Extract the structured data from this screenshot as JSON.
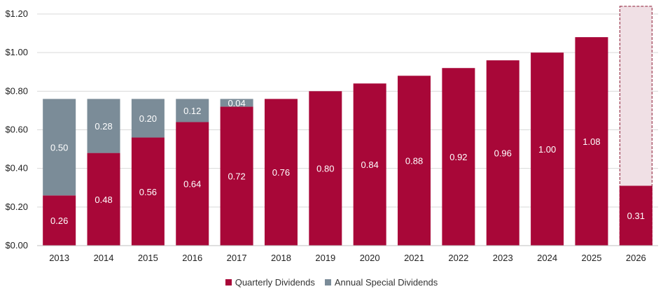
{
  "chart_data": {
    "type": "bar",
    "stacked": true,
    "categories": [
      "2013",
      "2014",
      "2015",
      "2016",
      "2017",
      "2018",
      "2019",
      "2020",
      "2021",
      "2022",
      "2023",
      "2024",
      "2025",
      "2026"
    ],
    "series": [
      {
        "name": "Quarterly Dividends",
        "color": "#A80738",
        "values": [
          0.26,
          0.48,
          0.56,
          0.64,
          0.72,
          0.76,
          0.8,
          0.84,
          0.88,
          0.92,
          0.96,
          1.0,
          1.08,
          0.31
        ],
        "labels": [
          "0.26",
          "0.48",
          "0.56",
          "0.64",
          "0.72",
          "0.76",
          "0.80",
          "0.84",
          "0.88",
          "0.92",
          "0.96",
          "1.00",
          "1.08",
          "0.31"
        ]
      },
      {
        "name": "Annual Special Dividends",
        "color": "#7B8C98",
        "values": [
          0.5,
          0.28,
          0.2,
          0.12,
          0.04,
          0,
          0,
          0,
          0,
          0,
          0,
          0,
          0,
          0
        ],
        "labels": [
          "0.50",
          "0.28",
          "0.20",
          "0.12",
          "0.04",
          "",
          "",
          "",
          "",
          "",
          "",
          "",
          "",
          ""
        ]
      }
    ],
    "projected": {
      "category": "2026",
      "total": 1.24,
      "fill": "#F0E0E5",
      "border": "#8B1A33",
      "style": "dashed"
    },
    "ylim": [
      0,
      1.2
    ],
    "yticks": [
      "$0.00",
      "$0.20",
      "$0.40",
      "$0.60",
      "$0.80",
      "$1.00",
      "$1.20"
    ],
    "grid": true,
    "legend": "bottom",
    "title": "",
    "xlabel": "",
    "ylabel": ""
  }
}
